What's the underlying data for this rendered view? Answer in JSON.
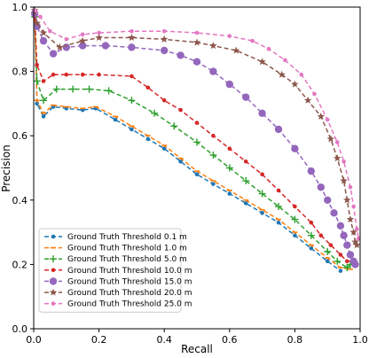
{
  "chart_data": {
    "type": "line",
    "title": "",
    "xlabel": "Recall",
    "ylabel": "Precision",
    "xlim": [
      0.0,
      1.0
    ],
    "ylim": [
      0.0,
      1.0
    ],
    "xticks": [
      "0.0",
      "0.2",
      "0.4",
      "0.6",
      "0.8",
      "1.0"
    ],
    "yticks": [
      "0.0",
      "0.2",
      "0.4",
      "0.6",
      "0.8",
      "1.0"
    ],
    "grid": false,
    "legend": "lower-left",
    "series": [
      {
        "name": "Ground Truth Threshold 0.1 m",
        "color": "#1f77b4",
        "marker": "point",
        "dashed": true,
        "points": [
          [
            0.003,
            0.98
          ],
          [
            0.01,
            0.7
          ],
          [
            0.03,
            0.66
          ],
          [
            0.06,
            0.69
          ],
          [
            0.1,
            0.685
          ],
          [
            0.15,
            0.68
          ],
          [
            0.19,
            0.685
          ],
          [
            0.25,
            0.65
          ],
          [
            0.3,
            0.62
          ],
          [
            0.35,
            0.59
          ],
          [
            0.4,
            0.56
          ],
          [
            0.45,
            0.52
          ],
          [
            0.5,
            0.48
          ],
          [
            0.55,
            0.45
          ],
          [
            0.6,
            0.42
          ],
          [
            0.65,
            0.39
          ],
          [
            0.7,
            0.36
          ],
          [
            0.75,
            0.33
          ],
          [
            0.8,
            0.29
          ],
          [
            0.85,
            0.25
          ],
          [
            0.9,
            0.21
          ],
          [
            0.94,
            0.18
          ]
        ]
      },
      {
        "name": "Ground Truth Threshold 1.0 m",
        "color": "#ff7f0e",
        "marker": "dash",
        "dashed": true,
        "points": [
          [
            0.003,
            0.98
          ],
          [
            0.01,
            0.71
          ],
          [
            0.03,
            0.67
          ],
          [
            0.06,
            0.695
          ],
          [
            0.1,
            0.69
          ],
          [
            0.15,
            0.685
          ],
          [
            0.19,
            0.69
          ],
          [
            0.25,
            0.66
          ],
          [
            0.3,
            0.63
          ],
          [
            0.35,
            0.6
          ],
          [
            0.4,
            0.57
          ],
          [
            0.45,
            0.53
          ],
          [
            0.5,
            0.49
          ],
          [
            0.55,
            0.46
          ],
          [
            0.6,
            0.43
          ],
          [
            0.65,
            0.4
          ],
          [
            0.7,
            0.37
          ],
          [
            0.75,
            0.34
          ],
          [
            0.8,
            0.3
          ],
          [
            0.85,
            0.26
          ],
          [
            0.9,
            0.22
          ],
          [
            0.94,
            0.19
          ],
          [
            0.97,
            0.185
          ]
        ]
      },
      {
        "name": "Ground Truth Threshold 5.0 m",
        "color": "#2ca02c",
        "marker": "plus",
        "dashed": true,
        "points": [
          [
            0.003,
            0.97
          ],
          [
            0.01,
            0.77
          ],
          [
            0.03,
            0.71
          ],
          [
            0.07,
            0.745
          ],
          [
            0.12,
            0.745
          ],
          [
            0.17,
            0.745
          ],
          [
            0.23,
            0.74
          ],
          [
            0.3,
            0.71
          ],
          [
            0.37,
            0.67
          ],
          [
            0.43,
            0.63
          ],
          [
            0.5,
            0.58
          ],
          [
            0.55,
            0.54
          ],
          [
            0.6,
            0.5
          ],
          [
            0.65,
            0.46
          ],
          [
            0.7,
            0.42
          ],
          [
            0.75,
            0.38
          ],
          [
            0.8,
            0.34
          ],
          [
            0.85,
            0.29
          ],
          [
            0.9,
            0.24
          ],
          [
            0.93,
            0.21
          ],
          [
            0.96,
            0.19
          ],
          [
            0.97,
            0.2
          ]
        ]
      },
      {
        "name": "Ground Truth Threshold 10.0 m",
        "color": "#d62728",
        "marker": "point",
        "dashed": true,
        "points": [
          [
            0.003,
            0.97
          ],
          [
            0.01,
            0.82
          ],
          [
            0.03,
            0.77
          ],
          [
            0.06,
            0.79
          ],
          [
            0.1,
            0.79
          ],
          [
            0.15,
            0.79
          ],
          [
            0.2,
            0.79
          ],
          [
            0.3,
            0.785
          ],
          [
            0.35,
            0.75
          ],
          [
            0.4,
            0.71
          ],
          [
            0.45,
            0.68
          ],
          [
            0.5,
            0.64
          ],
          [
            0.55,
            0.6
          ],
          [
            0.6,
            0.56
          ],
          [
            0.65,
            0.52
          ],
          [
            0.7,
            0.48
          ],
          [
            0.75,
            0.43
          ],
          [
            0.8,
            0.38
          ],
          [
            0.85,
            0.33
          ],
          [
            0.88,
            0.29
          ],
          [
            0.91,
            0.26
          ],
          [
            0.94,
            0.23
          ],
          [
            0.96,
            0.21
          ],
          [
            0.98,
            0.21
          ]
        ]
      },
      {
        "name": "Ground Truth Threshold 15.0 m",
        "color": "#9467bd",
        "marker": "circle",
        "dashed": true,
        "points": [
          [
            0.003,
            0.98
          ],
          [
            0.01,
            0.94
          ],
          [
            0.03,
            0.895
          ],
          [
            0.06,
            0.855
          ],
          [
            0.1,
            0.875
          ],
          [
            0.15,
            0.88
          ],
          [
            0.22,
            0.88
          ],
          [
            0.3,
            0.875
          ],
          [
            0.4,
            0.865
          ],
          [
            0.45,
            0.85
          ],
          [
            0.5,
            0.83
          ],
          [
            0.55,
            0.8
          ],
          [
            0.6,
            0.76
          ],
          [
            0.65,
            0.72
          ],
          [
            0.7,
            0.67
          ],
          [
            0.75,
            0.62
          ],
          [
            0.8,
            0.56
          ],
          [
            0.85,
            0.49
          ],
          [
            0.88,
            0.44
          ],
          [
            0.9,
            0.4
          ],
          [
            0.92,
            0.36
          ],
          [
            0.94,
            0.32
          ],
          [
            0.95,
            0.29
          ],
          [
            0.96,
            0.26
          ],
          [
            0.97,
            0.23
          ],
          [
            0.98,
            0.21
          ],
          [
            0.985,
            0.2
          ]
        ]
      },
      {
        "name": "Ground Truth Threshold 20.0 m",
        "color": "#8c564b",
        "marker": "star",
        "dashed": true,
        "points": [
          [
            0.003,
            0.99
          ],
          [
            0.01,
            0.95
          ],
          [
            0.03,
            0.92
          ],
          [
            0.08,
            0.875
          ],
          [
            0.15,
            0.895
          ],
          [
            0.2,
            0.905
          ],
          [
            0.3,
            0.905
          ],
          [
            0.4,
            0.9
          ],
          [
            0.5,
            0.89
          ],
          [
            0.55,
            0.88
          ],
          [
            0.62,
            0.865
          ],
          [
            0.7,
            0.83
          ],
          [
            0.76,
            0.79
          ],
          [
            0.8,
            0.76
          ],
          [
            0.84,
            0.71
          ],
          [
            0.88,
            0.66
          ],
          [
            0.91,
            0.59
          ],
          [
            0.93,
            0.53
          ],
          [
            0.95,
            0.46
          ],
          [
            0.96,
            0.4
          ],
          [
            0.97,
            0.34
          ],
          [
            0.98,
            0.3
          ],
          [
            0.985,
            0.27
          ],
          [
            0.99,
            0.26
          ]
        ]
      },
      {
        "name": "Ground Truth Threshold 25.0 m",
        "color": "#e377c2",
        "marker": "point",
        "dashed": true,
        "points": [
          [
            0.003,
            0.99
          ],
          [
            0.02,
            0.97
          ],
          [
            0.05,
            0.925
          ],
          [
            0.1,
            0.9
          ],
          [
            0.15,
            0.915
          ],
          [
            0.2,
            0.92
          ],
          [
            0.3,
            0.925
          ],
          [
            0.4,
            0.925
          ],
          [
            0.5,
            0.92
          ],
          [
            0.6,
            0.91
          ],
          [
            0.67,
            0.895
          ],
          [
            0.72,
            0.87
          ],
          [
            0.77,
            0.835
          ],
          [
            0.82,
            0.79
          ],
          [
            0.86,
            0.73
          ],
          [
            0.9,
            0.65
          ],
          [
            0.93,
            0.58
          ],
          [
            0.95,
            0.52
          ],
          [
            0.97,
            0.44
          ],
          [
            0.98,
            0.38
          ],
          [
            0.99,
            0.31
          ],
          [
            0.995,
            0.28
          ]
        ]
      }
    ]
  }
}
